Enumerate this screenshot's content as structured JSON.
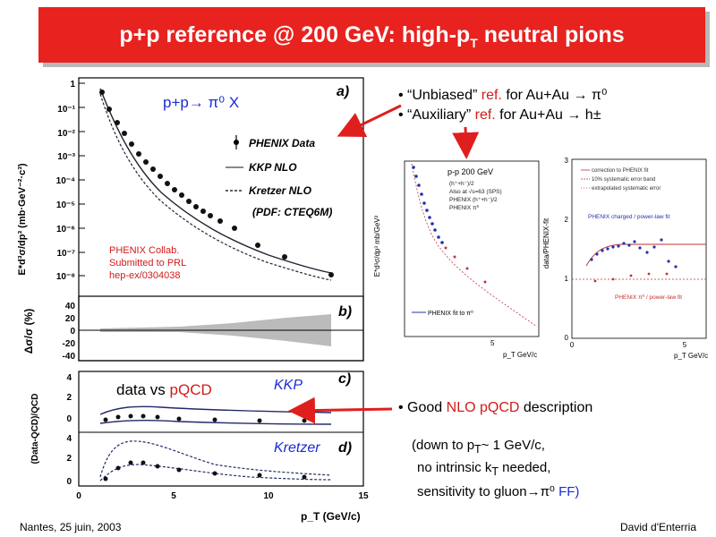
{
  "title": {
    "main": "p+p reference @ 200 GeV: high-p",
    "sub": "T",
    "rest": " neutral pions"
  },
  "left_plot": {
    "yaxis_main": "E*d³σ/dp³ (mb·GeV⁻²·c³)",
    "yticks_main": [
      "1",
      "10⁻¹",
      "10⁻²",
      "10⁻³",
      "10⁻⁴",
      "10⁻⁵",
      "10⁻⁶",
      "10⁻⁷",
      "10⁻⁸"
    ],
    "reaction": "p+p→ π⁰ X",
    "panel_a": "a)",
    "legend": [
      "PHENIX Data",
      "KKP NLO",
      "Kretzer NLO",
      "(PDF: CTEQ6M)"
    ],
    "collab": [
      "PHENIX Collab.",
      "Submitted to PRL",
      "hep-ex/0304038"
    ],
    "panel_b": "b)",
    "yaxis_b": "Δσ/σ (%)",
    "yticks_b": [
      "40",
      "20",
      "0",
      "-20",
      "-40"
    ],
    "panel_c": "c)",
    "panel_c_text": "data vs ",
    "panel_c_red": "pQCD",
    "kkp": "KKP",
    "kretzer": "Kretzer",
    "panel_d": "d)",
    "yaxis_cd": "(Data-QCD)/QCD",
    "yticks_c": [
      "4",
      "2",
      "0"
    ],
    "yticks_d": [
      "4",
      "2",
      "0"
    ],
    "xticks": [
      "0",
      "5",
      "10",
      "15"
    ],
    "xlabel": "p_T (GeV/c)"
  },
  "right_text": {
    "b1_a": "“Unbiased” ",
    "b1_red": "ref.",
    "b1_b": " for Au+Au → π⁰",
    "b2_a": "“Auxiliary” ",
    "b2_red": "ref.",
    "b2_b": " for Au+Au → h±",
    "b3_a": "Good ",
    "b3_red": "NLO pQCD",
    "b3_b": " description",
    "p1": "(down to p",
    "p1_sub": "T",
    "p1_b": "~ 1 GeV/c,",
    "p2": "no intrinsic k",
    "p2_sub": "T",
    "p2_b": " needed,",
    "p3": "sensitivity to gluon→π⁰ ",
    "p3_blue": "FF)"
  },
  "mid_plot": {
    "title": "p-p 200 GeV",
    "legend": [
      "(h⁺+h⁻)/2",
      "Also at √s=63 (SPS)",
      "PHENIX (h⁺+h⁻)/2",
      "PHENIX π⁰"
    ],
    "fit": "PHENIX fit to π⁰",
    "ylabel": "E*d³σ/dp³ mb/GeV²",
    "xtick": "5",
    "xlabel": "p_T GeV/c"
  },
  "right_plot": {
    "ylabel": "data/PHENIX-fit",
    "yticks": [
      "3",
      "2",
      "1",
      "0"
    ],
    "xticks": [
      "0",
      "5"
    ],
    "legend": [
      "correction to PHENIX fit",
      "10% systematic error band",
      "extrapolated systematic error"
    ],
    "label1": "PHENIX charged / power-law fit",
    "label2": "PHENIX π⁰ / power-law fit",
    "xlabel": "p_T GeV/c"
  },
  "footer": {
    "left": "Nantes, 25 juin, 2003",
    "right": "David d'Enterria"
  },
  "colors": {
    "title_bg": "#e8221f",
    "accent_red": "#d21b1b",
    "accent_blue": "#1a2bd6"
  }
}
